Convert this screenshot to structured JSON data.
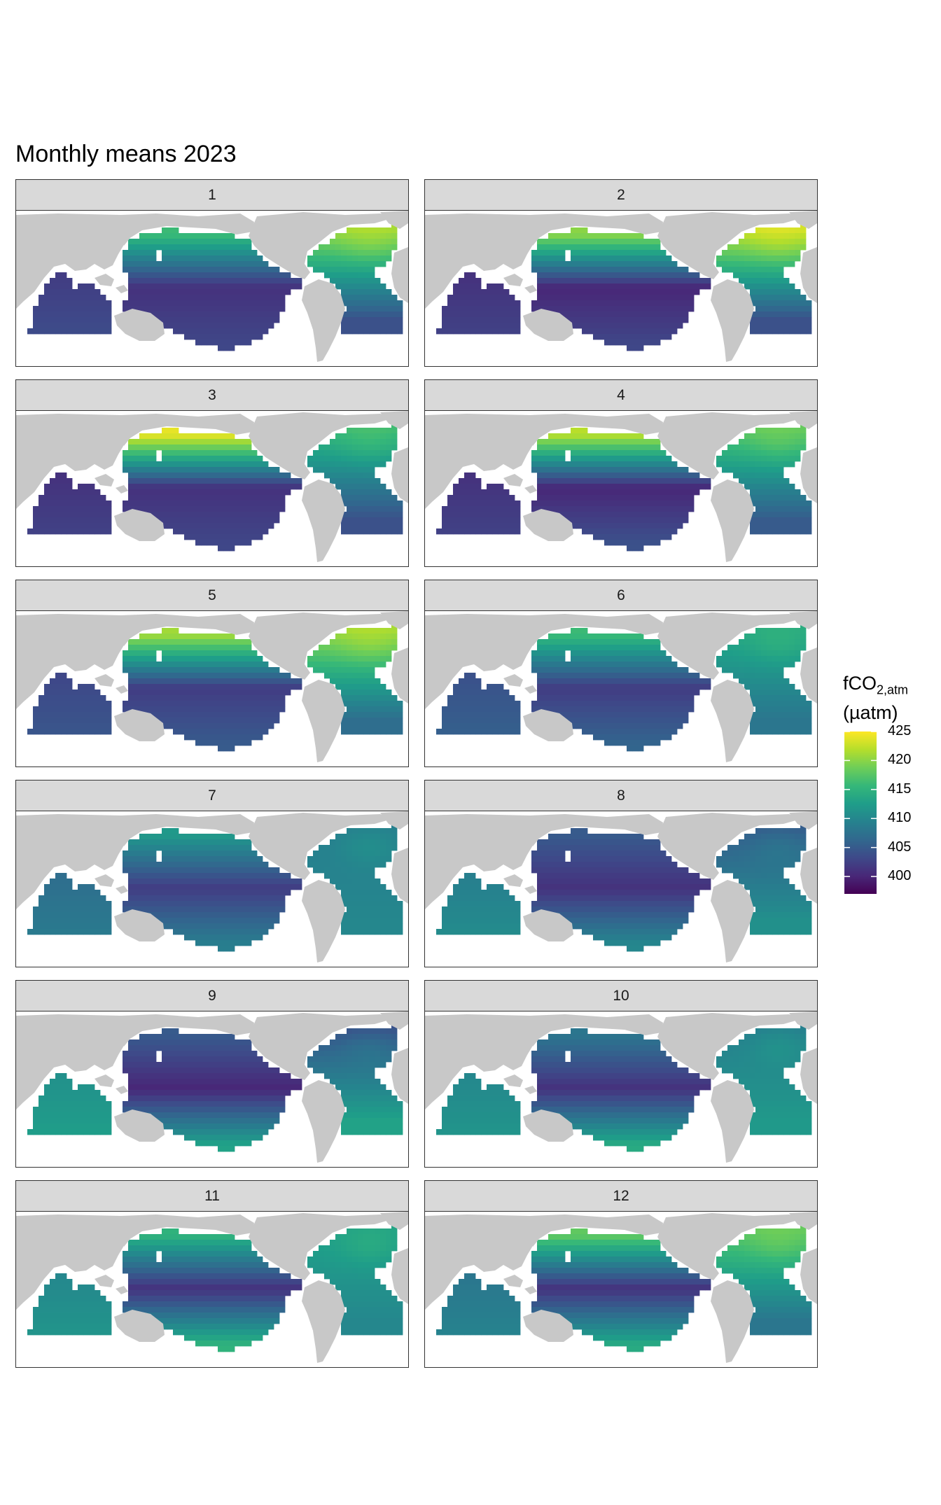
{
  "title": "Monthly means 2023",
  "legend": {
    "title_main": "fCO",
    "title_sub": "2,atm",
    "title_unit": "(µatm)",
    "min": 397,
    "max": 425,
    "ticks": [
      400,
      405,
      410,
      415,
      420,
      425
    ]
  },
  "colors": {
    "land": "#c8c8c8",
    "ocean_bg": "#ffffff",
    "strip": "#d9d9d9",
    "viridis": [
      "#440154",
      "#482878",
      "#3e4989",
      "#31688e",
      "#26828e",
      "#1f9e89",
      "#35b779",
      "#6ece58",
      "#b5de2b",
      "#fde725"
    ]
  },
  "panels": [
    {
      "label": "1",
      "np": 416,
      "eq": 401,
      "sp": 403,
      "na": 421,
      "tropatl": 404,
      "io": 402
    },
    {
      "label": "2",
      "np": 420,
      "eq": 400,
      "sp": 403,
      "na": 423,
      "tropatl": 404,
      "io": 401
    },
    {
      "label": "3",
      "np": 424,
      "eq": 401,
      "sp": 403,
      "na": 416,
      "tropatl": 404,
      "io": 401
    },
    {
      "label": "4",
      "np": 422,
      "eq": 400,
      "sp": 404,
      "na": 418,
      "tropatl": 405,
      "io": 401
    },
    {
      "label": "5",
      "np": 421,
      "eq": 402,
      "sp": 405,
      "na": 421,
      "tropatl": 407,
      "io": 403
    },
    {
      "label": "6",
      "np": 416,
      "eq": 402,
      "sp": 406,
      "na": 414,
      "tropatl": 408,
      "io": 404
    },
    {
      "label": "7",
      "np": 412,
      "eq": 402,
      "sp": 409,
      "na": 409,
      "tropatl": 410,
      "io": 407
    },
    {
      "label": "8",
      "np": 405,
      "eq": 401,
      "sp": 410,
      "na": 405,
      "tropatl": 411,
      "io": 409
    },
    {
      "label": "9",
      "np": 405,
      "eq": 400,
      "sp": 413,
      "na": 404,
      "tropatl": 413,
      "io": 411
    },
    {
      "label": "10",
      "np": 408,
      "eq": 401,
      "sp": 414,
      "na": 409,
      "tropatl": 412,
      "io": 410
    },
    {
      "label": "11",
      "np": 415,
      "eq": 401,
      "sp": 415,
      "na": 413,
      "tropatl": 410,
      "io": 410
    },
    {
      "label": "12",
      "np": 418,
      "eq": 401,
      "sp": 414,
      "na": 418,
      "tropatl": 408,
      "io": 408
    }
  ]
}
